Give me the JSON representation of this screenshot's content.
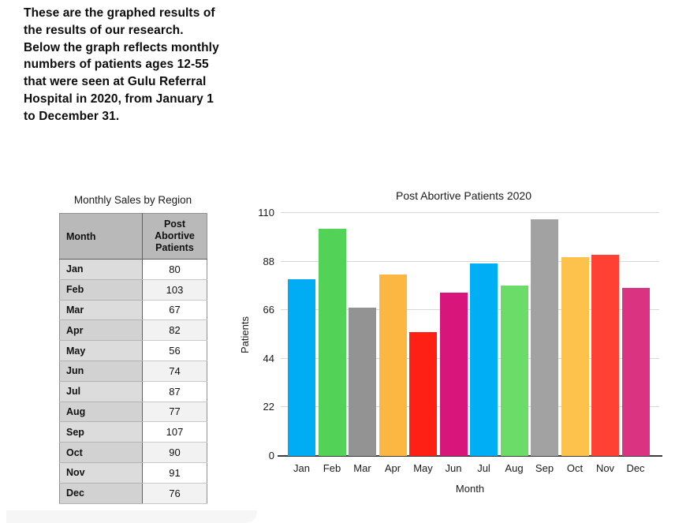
{
  "intro": {
    "lines": [
      "These are the graphed results of",
      "the results of our research.",
      "Below the graph reflects monthly",
      "numbers of patients ages 12-55",
      "that were seen at Gulu Referral",
      "Hospital in 2020, from January 1",
      "to December 31."
    ]
  },
  "table": {
    "title": "Monthly Sales by Region",
    "headers": [
      "Month",
      "Post Abortive Patients"
    ],
    "rows": [
      {
        "month": "Jan",
        "value": 80
      },
      {
        "month": "Feb",
        "value": 103
      },
      {
        "month": "Mar",
        "value": 67
      },
      {
        "month": "Apr",
        "value": 82
      },
      {
        "month": "May",
        "value": 56
      },
      {
        "month": "Jun",
        "value": 74
      },
      {
        "month": "Jul",
        "value": 87
      },
      {
        "month": "Aug",
        "value": 77
      },
      {
        "month": "Sep",
        "value": 107
      },
      {
        "month": "Oct",
        "value": 90
      },
      {
        "month": "Nov",
        "value": 91
      },
      {
        "month": "Dec",
        "value": 76
      }
    ]
  },
  "chart_data": {
    "type": "bar",
    "title": "Post Abortive Patients 2020",
    "xlabel": "Month",
    "ylabel": "Patients",
    "categories": [
      "Jan",
      "Feb",
      "Mar",
      "Apr",
      "May",
      "Jun",
      "Jul",
      "Aug",
      "Sep",
      "Oct",
      "Nov",
      "Dec"
    ],
    "values": [
      80,
      103,
      67,
      82,
      56,
      74,
      87,
      77,
      107,
      90,
      91,
      76
    ],
    "bar_colors": [
      "#00ADF5",
      "#52D256",
      "#939393",
      "#FBB742",
      "#FF2015",
      "#D7157A",
      "#00AEF5",
      "#6BDC68",
      "#A2A2A2",
      "#FDC24B",
      "#FE4133",
      "#D93381"
    ],
    "yticks": [
      0,
      22,
      44,
      66,
      88,
      110
    ],
    "ylim": [
      0,
      110
    ],
    "grid": true,
    "legend": false
  }
}
